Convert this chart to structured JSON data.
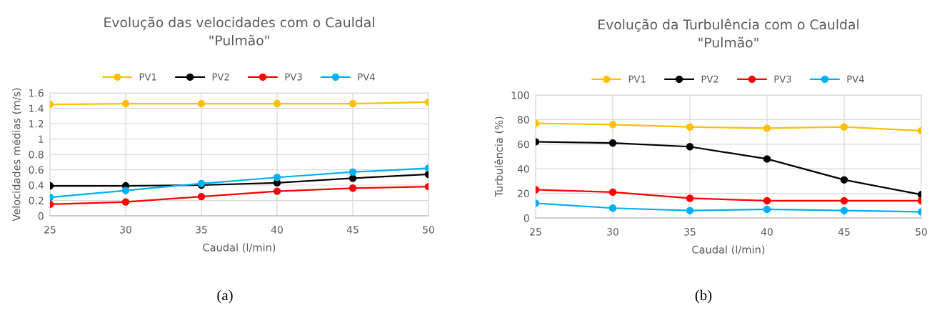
{
  "chart_data": [
    {
      "type": "line",
      "title": "Evolução das velocidades com o Cauldal\n\"Pulmão\"",
      "xlabel": "Caudal (l/min)",
      "ylabel": "Velocidades médias (m/s)",
      "x": [
        25,
        30,
        35,
        40,
        45,
        50
      ],
      "xlim": [
        25,
        50
      ],
      "xticks": [
        25,
        30,
        35,
        40,
        45,
        50
      ],
      "ylim": [
        0,
        1.6
      ],
      "yticks": [
        0,
        0.2,
        0.4,
        0.6,
        0.8,
        1,
        1.2,
        1.4,
        1.6
      ],
      "grid": true,
      "legend": "top",
      "marker": "circle",
      "line_style": "solid",
      "annotations": [
        "(a)"
      ],
      "series": [
        {
          "name": "PV1",
          "color": "#ffc000",
          "values": [
            1.45,
            1.46,
            1.46,
            1.46,
            1.46,
            1.48
          ]
        },
        {
          "name": "PV2",
          "color": "#000000",
          "values": [
            0.39,
            0.39,
            0.4,
            0.43,
            0.49,
            0.54
          ]
        },
        {
          "name": "PV3",
          "color": "#ff0000",
          "values": [
            0.15,
            0.18,
            0.25,
            0.32,
            0.36,
            0.38
          ]
        },
        {
          "name": "PV4",
          "color": "#00b0f0",
          "values": [
            0.24,
            0.33,
            0.42,
            0.5,
            0.57,
            0.62
          ]
        }
      ]
    },
    {
      "type": "line",
      "title": "Evolução da Turbulência com o Cauldal\n\"Pulmão\"",
      "xlabel": "Caudal (l/min)",
      "ylabel": "Turbulência (%)",
      "x": [
        25,
        30,
        35,
        40,
        45,
        50
      ],
      "xlim": [
        25,
        50
      ],
      "xticks": [
        25,
        30,
        35,
        40,
        45,
        50
      ],
      "ylim": [
        0,
        100
      ],
      "yticks": [
        0,
        20,
        40,
        60,
        80,
        100
      ],
      "grid": true,
      "legend": "top",
      "marker": "circle",
      "line_style": "solid",
      "annotations": [
        "(b)"
      ],
      "series": [
        {
          "name": "PV1",
          "color": "#ffc000",
          "values": [
            77,
            76,
            74,
            73,
            74,
            71
          ]
        },
        {
          "name": "PV2",
          "color": "#000000",
          "values": [
            62,
            61,
            58,
            48,
            31,
            19
          ]
        },
        {
          "name": "PV3",
          "color": "#ff0000",
          "values": [
            23,
            21,
            16,
            14,
            14,
            14
          ]
        },
        {
          "name": "PV4",
          "color": "#00b0f0",
          "values": [
            12,
            8,
            6,
            7,
            6,
            5
          ]
        }
      ]
    }
  ]
}
